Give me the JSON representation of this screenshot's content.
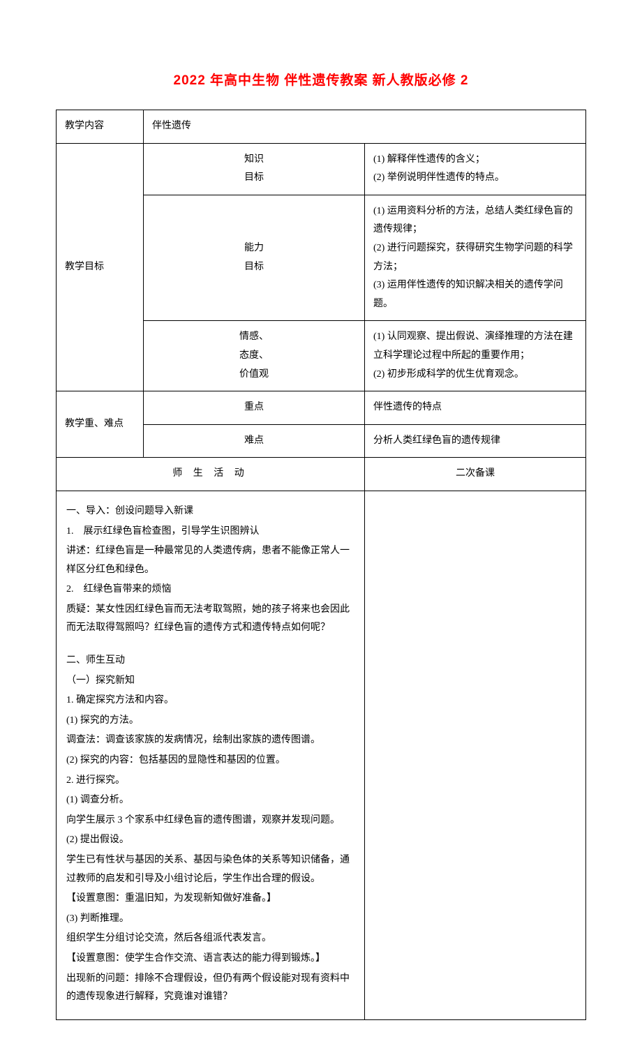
{
  "title": "2022 年高中生物 伴性遗传教案 新人教版必修 2",
  "row_content": {
    "label": "教学内容",
    "value": "伴性遗传"
  },
  "row_goals": {
    "label": "教学目标",
    "knowledge": {
      "sub": "知识\n目标",
      "text": "(1) 解释伴性遗传的含义；\n(2) 举例说明伴性遗传的特点。"
    },
    "ability": {
      "sub": "能力\n目标",
      "text": "(1) 运用资料分析的方法，总结人类红绿色盲的遗传规律；\n(2) 进行问题探究，获得研究生物学问题的科学方法；\n(3) 运用伴性遗传的知识解决相关的遗传学问题。"
    },
    "attitude": {
      "sub": "情感、\n态度、\n价值观",
      "text": "(1) 认同观察、提出假说、演绎推理的方法在建立科学理论过程中所起的重要作用；\n(2) 初步形成科学的优生优育观念。"
    }
  },
  "row_focus": {
    "label": "教学重、难点",
    "keypoint": {
      "sub": "重点",
      "text": "伴性遗传的特点"
    },
    "difficulty": {
      "sub": "难点",
      "text": "分析人类红绿色盲的遗传规律"
    }
  },
  "activities": {
    "header": "师 生 活 动",
    "second_prep": "二次备课",
    "lines": [
      "一、导入：创设问题导入新课",
      "1.　展示红绿色盲检查图，引导学生识图辨认",
      "讲述：红绿色盲是一种最常见的人类遗传病，患者不能像正常人一样区分红色和绿色。",
      "2.　红绿色盲带来的烦恼",
      "质疑：某女性因红绿色盲而无法考取驾照，她的孩子将来也会因此而无法取得驾照吗？红绿色盲的遗传方式和遗传特点如何呢？",
      "",
      "二、师生互动",
      "（一）探究新知",
      "1. 确定探究方法和内容。",
      "(1) 探究的方法。",
      "调查法：调查该家族的发病情况，绘制出家族的遗传图谱。",
      "(2) 探究的内容：包括基因的显隐性和基因的位置。",
      "2. 进行探究。",
      "(1) 调查分析。",
      "向学生展示 3 个家系中红绿色盲的遗传图谱，观察并发现问题。",
      "(2) 提出假设。",
      "学生已有性状与基因的关系、基因与染色体的关系等知识储备，通过教师的启发和引导及小组讨论后，学生作出合理的假设。",
      "【设置意图：重温旧知，为发现新知做好准备。】",
      "(3) 判断推理。",
      "组织学生分组讨论交流，然后各组派代表发言。",
      "【设置意图：使学生合作交流、语言表达的能力得到锻炼。】",
      "出现新的问题：排除不合理假设，但仍有两个假设能对现有资料中的遗传现象进行解释，究竟谁对谁错？"
    ]
  },
  "colors": {
    "title": "#ff0000",
    "text": "#000000",
    "border": "#000000",
    "background": "#ffffff"
  }
}
